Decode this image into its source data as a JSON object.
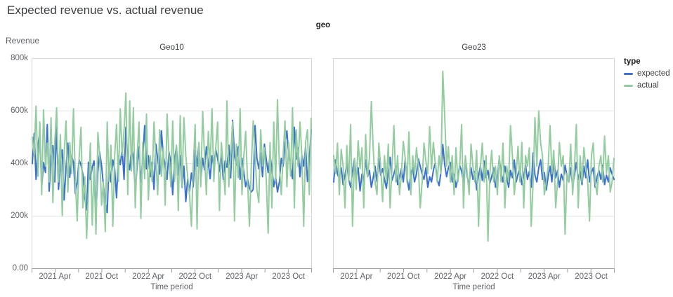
{
  "title": "Expected revenue vs. actual revenue",
  "facet_header": "geo",
  "y_axis": {
    "title": "Revenue",
    "tick_labels_top_to_bottom": [
      "800k",
      "600k",
      "400k",
      "200k",
      "0.00"
    ]
  },
  "x_axis": {
    "title": "Time period",
    "tick_labels": [
      "2021 Apr",
      "2021 Oct",
      "2022 Apr",
      "2022 Oct",
      "2023 Apr",
      "2023 Oct"
    ]
  },
  "legend": {
    "title": "type",
    "items": [
      {
        "label": "expected",
        "color": "#3a6fd4"
      },
      {
        "label": "actual",
        "color": "#93cd9f"
      }
    ]
  },
  "chart_data": {
    "type": "line",
    "facet_field": "geo",
    "x_unit": "week, Jan 2021 through Dec 2023",
    "values_unit": "thousands of revenue (k)",
    "ylim": [
      0,
      800000
    ],
    "grid": "horizontal at 200k/400k/600k",
    "legend_position": "right",
    "facets": [
      {
        "name": "Geo10",
        "series": [
          {
            "name": "expected",
            "values": [
              400,
              515,
              340,
              468,
              520,
              312,
              404,
              366,
              548,
              295,
              420,
              468,
              330,
              544,
              302,
              408,
              452,
              262,
              388,
              478,
              348,
              430,
              404,
              286,
              330,
              415,
              394,
              360,
              272,
              224,
              405,
              340,
              386,
              410,
              204,
              370,
              444,
              392,
              318,
              256,
              214,
              400,
              330,
              414,
              380,
              270,
              430,
              396,
              454,
              340,
              538,
              414,
              376,
              460,
              424,
              300,
              386,
              464,
              330,
              416,
              544,
              380,
              430,
              350,
              404,
              302,
              474,
              416,
              360,
              524,
              430,
              394,
              340,
              444,
              406,
              282,
              414,
              464,
              356,
              430,
              310,
              390,
              256,
              340,
              296,
              364,
              312,
              450,
              390,
              474,
              340,
              420,
              376,
              464,
              404,
              342,
              430,
              386,
              454,
              420,
              370,
              444,
              340,
              410,
              386,
              470,
              346,
              564,
              430,
              394,
              464,
              340,
              420,
              366,
              312,
              342,
              306,
              292,
              302,
              544,
              420,
              380,
              440,
              350,
              474,
              414,
              366,
              430,
              386,
              312,
              350,
              292,
              330,
              420,
              390,
              474,
              524,
              430,
              390,
              342,
              538,
              416,
              460,
              350,
              430,
              390,
              464,
              332,
              416,
              528
            ]
          },
          {
            "name": "actual",
            "values": [
              500,
              432,
              618,
              352,
              558,
              282,
              604,
              390,
              478,
              330,
              574,
              252,
              480,
              612,
              330,
              510,
              202,
              440,
              562,
              292,
              480,
              362,
              608,
              330,
              182,
              420,
              538,
              232,
              350,
              116,
              292,
              478,
              166,
              390,
              132,
              518,
              430,
              242,
              330,
              142,
              558,
              332,
              470,
              162,
              430,
              548,
              332,
              608,
              430,
              528,
              668,
              282,
              638,
              372,
              612,
              232,
              430,
              558,
              192,
              480,
              342,
              588,
              262,
              430,
              332,
              558,
              412,
              282,
              528,
              352,
              460,
              242,
              588,
              430,
              312,
              562,
              332,
              470,
              222,
              582,
              312,
              574,
              430,
              352,
              282,
              162,
              390,
              548,
              152,
              480,
              312,
              598,
              430,
              282,
              522,
              390,
              608,
              332,
              460,
              558,
              222,
              480,
              390,
              282,
              638,
              312,
              430,
              558,
              182,
              474,
              346,
              608,
              282,
              430,
              522,
              332,
              162,
              390,
              562,
              430,
              302,
              252,
              528,
              390,
              460,
              332,
              136,
              480,
              232,
              558,
              332,
              642,
              390,
              282,
              430,
              562,
              312,
              480,
              352,
              612,
              232,
              528,
              390,
              558,
              430,
              162,
              480,
              528,
              282,
              572
            ]
          }
        ]
      },
      {
        "name": "Geo23",
        "series": [
          {
            "name": "expected",
            "values": [
              330,
              414,
              360,
              342,
              384,
              320,
              356,
              400,
              340,
              310,
              370,
              418,
              346,
              384,
              296,
              360,
              330,
              414,
              350,
              374,
              310,
              346,
              390,
              330,
              418,
              356,
              380,
              340,
              306,
              370,
              424,
              336,
              360,
              390,
              320,
              350,
              380,
              330,
              414,
              346,
              300,
              366,
              384,
              330,
              360,
              418,
              390,
              360,
              340,
              384,
              310,
              350,
              330,
              374,
              404,
              340,
              316,
              366,
              472,
              396,
              350,
              384,
              404,
              330,
              360,
              310,
              346,
              394,
              370,
              330,
              414,
              350,
              320,
              384,
              340,
              370,
              300,
              356,
              390,
              336,
              410,
              346,
              374,
              326,
              350,
              384,
              310,
              340,
              420,
              366,
              330,
              390,
              350,
              310,
              374,
              346,
              414,
              330,
              360,
              384,
              320,
              350,
              394,
              340,
              370,
              310,
              440,
              356,
              330,
              384,
              414,
              340,
              366,
              300,
              350,
              390,
              330,
              420,
              346,
              374,
              310,
              360,
              336,
              394,
              350,
              330,
              384,
              316,
              356,
              404,
              340,
              370,
              320,
              390,
              346,
              414,
              330,
              366,
              384,
              310,
              350,
              374,
              340,
              394,
              320,
              356,
              330,
              384,
              360,
              340
            ]
          },
          {
            "name": "actual",
            "values": [
              430,
              362,
              478,
              282,
              454,
              390,
              232,
              468,
              330,
              548,
              162,
              420,
              302,
              486,
              380,
              460,
              232,
              510,
              350,
              420,
              636,
              460,
              330,
              282,
              478,
              390,
              256,
              430,
              330,
              474,
              232,
              390,
              544,
              330,
              430,
              282,
              362,
              484,
              420,
              330,
              520,
              282,
              430,
              356,
              460,
              390,
              232,
              330,
              478,
              410,
              362,
              540,
              380,
              480,
              400,
              330,
              430,
              362,
              750,
              582,
              390,
              464,
              330,
              430,
              282,
              460,
              330,
              390,
              548,
              232,
              430,
              362,
              282,
              474,
              390,
              330,
              450,
              162,
              390,
              478,
              330,
              430,
              106,
              362,
              450,
              330,
              390,
              282,
              430,
              330,
              478,
              232,
              390,
              330,
              544,
              430,
              282,
              362,
              466,
              330,
              480,
              232,
              430,
              390,
              460,
              162,
              330,
              574,
              390,
              600,
              478,
              430,
              282,
              330,
              390,
              544,
              362,
              450,
              232,
              330,
              480,
              390,
              430,
              132,
              362,
              330,
              474,
              282,
              390,
              548,
              232,
              430,
              330,
              460,
              390,
              330,
              182,
              430,
              478,
              330,
              282,
              390,
              430,
              330,
              504,
              362,
              430,
              292,
              330,
              420
            ]
          }
        ]
      }
    ]
  }
}
